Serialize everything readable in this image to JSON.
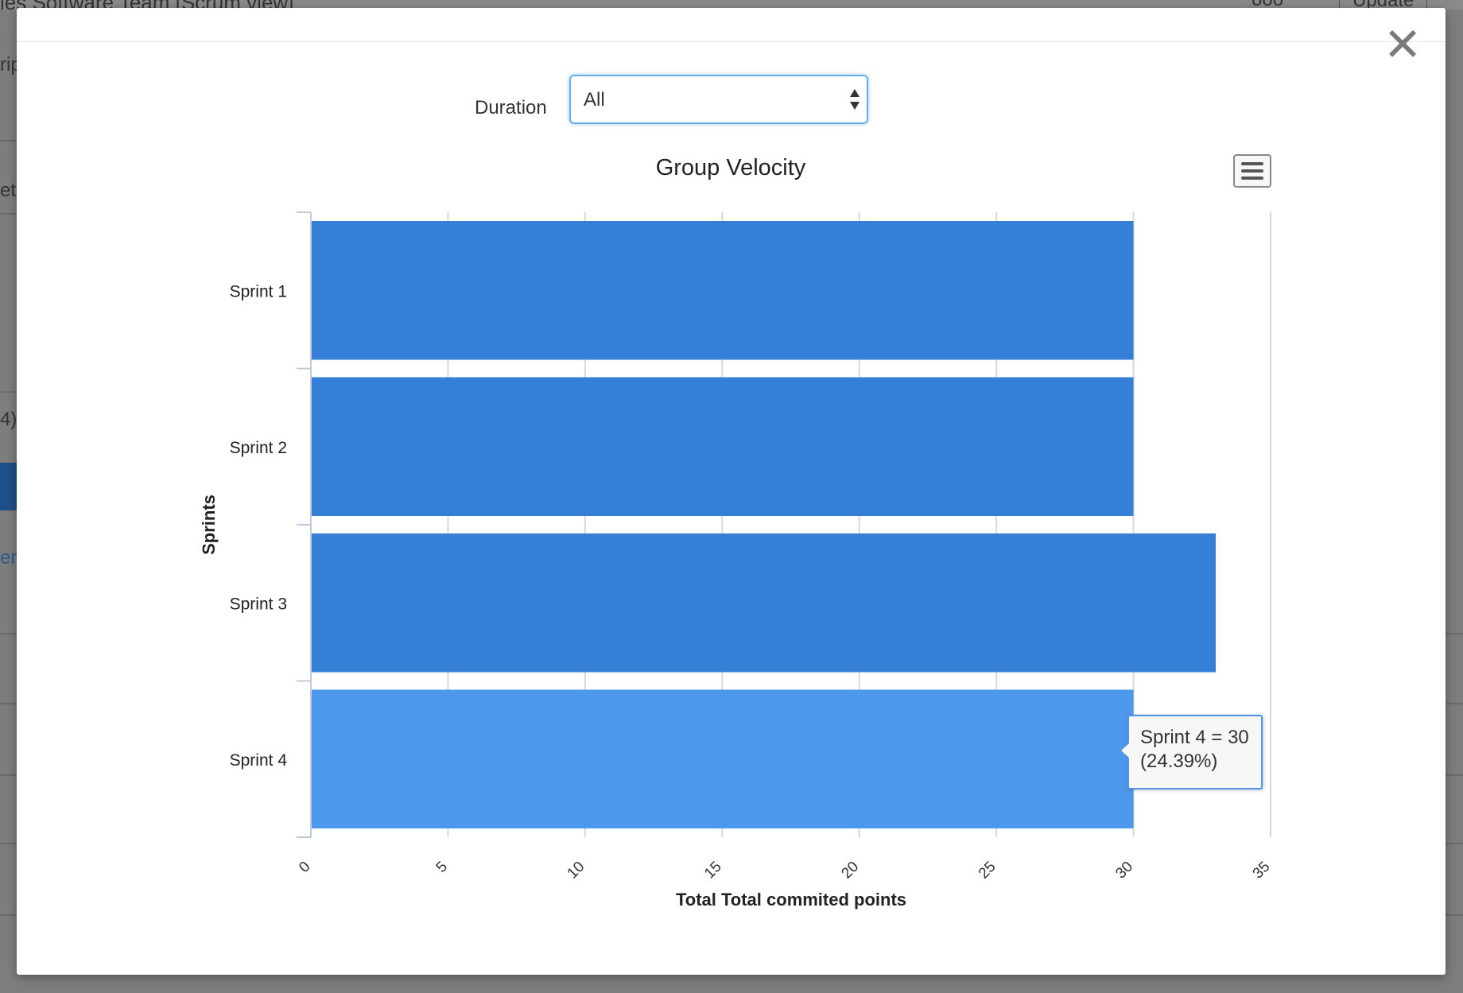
{
  "background": {
    "title": "ies Software Team [Scrum view]",
    "right_a": "ooo",
    "right_b": "Update",
    "fragments": [
      "rip",
      "ete",
      "4)"
    ],
    "link_fragment": "er"
  },
  "modal": {
    "duration_label": "Duration",
    "duration_value": "All",
    "close_icon": "close-icon",
    "menu_icon": "hamburger-menu-icon"
  },
  "chart_data": {
    "type": "bar",
    "orientation": "horizontal",
    "title": "Group Velocity",
    "xlabel": "Total Total commited points",
    "ylabel": "Sprints",
    "categories": [
      "Sprint 1",
      "Sprint 2",
      "Sprint 3",
      "Sprint 4"
    ],
    "values": [
      30,
      30,
      33,
      30
    ],
    "xlim": [
      0,
      35
    ],
    "xticks": [
      0,
      5,
      10,
      15,
      20,
      25,
      30,
      35
    ],
    "grid": true,
    "colors": {
      "bar": "#3580d6",
      "bar_hover": "#4e98eb",
      "grid": "#d8d8d8",
      "axis": "#c0cbe0"
    },
    "highlighted": "Sprint 4",
    "tooltip": {
      "line1": "Sprint 4 = 30",
      "line2": "(24.39%)"
    }
  }
}
